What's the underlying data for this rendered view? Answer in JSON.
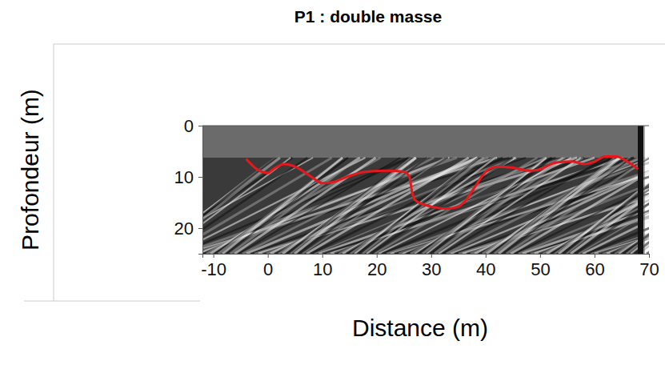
{
  "chart_data": {
    "type": "line",
    "title": "P1 : double masse",
    "x_label": "Distance (m)",
    "y_label": "Profondeur (m)",
    "x": [
      -4,
      -2,
      0,
      1,
      3,
      5,
      8,
      10,
      12,
      15,
      18,
      22,
      25,
      26,
      26.5,
      27,
      30,
      33,
      35,
      36,
      38,
      40,
      42,
      45,
      48,
      50,
      53,
      56,
      58,
      60,
      62,
      64,
      66,
      68
    ],
    "values": [
      6.5,
      8.5,
      9.2,
      8.5,
      7.5,
      8,
      10,
      11.2,
      11,
      9.8,
      9,
      8.8,
      9,
      10,
      13,
      14.5,
      15.8,
      16.2,
      15.8,
      15,
      12,
      9,
      8,
      8.2,
      8.8,
      8.5,
      7.2,
      7,
      7.5,
      7,
      6,
      6,
      7,
      8.5
    ],
    "color": "#e8171b",
    "xlim": [
      -12,
      70
    ],
    "xticks": [
      -10,
      0,
      10,
      20,
      30,
      40,
      50,
      60,
      70
    ],
    "ylim": [
      25,
      0
    ],
    "yticks": [
      0,
      10,
      20
    ],
    "grid": false
  }
}
